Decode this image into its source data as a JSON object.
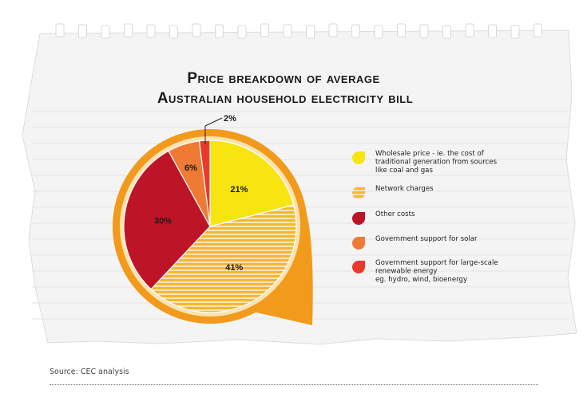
{
  "chart_data": {
    "type": "pie",
    "title_lines": [
      "Price breakdown of average",
      "Australian household electricity bill"
    ],
    "slices": [
      {
        "label": "Wholesale price - ie. the cost of traditional generation from sources like coal and gas",
        "legend_lines": [
          "Wholesale price - ie. the cost of",
          "traditional generation from sources",
          "like coal and gas"
        ],
        "value": 21,
        "display": "21%",
        "color": "#f7e411",
        "pattern": "solid"
      },
      {
        "label": "Network charges",
        "legend_lines": [
          "Network charges"
        ],
        "value": 41,
        "display": "41%",
        "color": "#f5b731",
        "pattern": "striped"
      },
      {
        "label": "Other costs",
        "legend_lines": [
          "Other costs"
        ],
        "value": 30,
        "display": "30%",
        "color": "#be1428",
        "pattern": "solid"
      },
      {
        "label": "Government support for solar",
        "legend_lines": [
          "Government support for solar"
        ],
        "value": 6,
        "display": "6%",
        "color": "#ee7a33",
        "pattern": "solid"
      },
      {
        "label": "Government support for large-scale renewable energy eg. hydro, wind, bioenergy",
        "legend_lines": [
          "Government support for large-scale",
          "renewable energy",
          "eg. hydro, wind, bioenergy"
        ],
        "value": 2,
        "display": "2%",
        "color": "#e83a2c",
        "pattern": "solid"
      }
    ]
  },
  "source": "Source: CEC analysis",
  "colors": {
    "frame": "#f29a1c",
    "frame_shadow": "#e9870c",
    "paper": "#f4f4f4"
  }
}
